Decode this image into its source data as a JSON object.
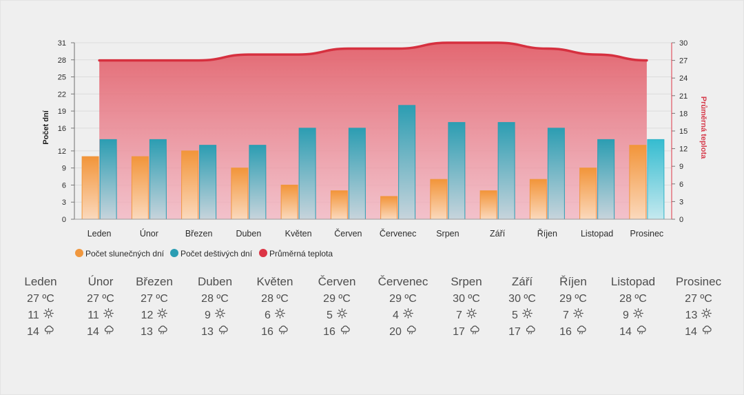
{
  "chart_data": {
    "type": "bar+area",
    "categories": [
      "Leden",
      "Únor",
      "Březen",
      "Duben",
      "Květen",
      "Červen",
      "Červenec",
      "Srpen",
      "Září",
      "Říjen",
      "Listopad",
      "Prosinec"
    ],
    "series": [
      {
        "name": "Počet slunečných dní",
        "type": "bar",
        "axis": "left",
        "color": "#f0973e",
        "values": [
          11,
          11,
          12,
          9,
          6,
          5,
          4,
          7,
          5,
          7,
          9,
          13
        ]
      },
      {
        "name": "Počet deštivých dní",
        "type": "bar",
        "axis": "left",
        "color": "#2a9db3",
        "values": [
          14,
          14,
          13,
          13,
          16,
          16,
          20,
          17,
          17,
          16,
          14,
          14
        ]
      },
      {
        "name": "Průměrná teplota",
        "type": "area",
        "axis": "right",
        "color": "#dc3545",
        "values": [
          27,
          27,
          27,
          28,
          28,
          29,
          29,
          30,
          30,
          29,
          28,
          27
        ]
      }
    ],
    "y_left": {
      "label": "Počet dní",
      "ticks": [
        0,
        3,
        6,
        9,
        12,
        16,
        19,
        22,
        25,
        28,
        31
      ],
      "range": [
        0,
        31
      ]
    },
    "y_right": {
      "label": "Průměrná teplota",
      "ticks": [
        0,
        3,
        6,
        9,
        12,
        15,
        18,
        21,
        24,
        27,
        30
      ],
      "range": [
        0,
        30
      ]
    },
    "legend_position": "bottom-left",
    "grid": true
  },
  "table": {
    "unit": "ºC",
    "rows": [
      {
        "month": "Leden",
        "temp": "27 ºC",
        "sun": "11",
        "rain": "14"
      },
      {
        "month": "Únor",
        "temp": "27 ºC",
        "sun": "11",
        "rain": "14"
      },
      {
        "month": "Březen",
        "temp": "27 ºC",
        "sun": "12",
        "rain": "13"
      },
      {
        "month": "Duben",
        "temp": "28 ºC",
        "sun": "9",
        "rain": "13"
      },
      {
        "month": "Květen",
        "temp": "28 ºC",
        "sun": "6",
        "rain": "16"
      },
      {
        "month": "Červen",
        "temp": "29 ºC",
        "sun": "5",
        "rain": "16"
      },
      {
        "month": "Červenec",
        "temp": "29 ºC",
        "sun": "4",
        "rain": "20"
      },
      {
        "month": "Srpen",
        "temp": "30 ºC",
        "sun": "7",
        "rain": "17"
      },
      {
        "month": "Září",
        "temp": "30 ºC",
        "sun": "5",
        "rain": "17"
      },
      {
        "month": "Říjen",
        "temp": "29 ºC",
        "sun": "7",
        "rain": "16"
      },
      {
        "month": "Listopad",
        "temp": "28 ºC",
        "sun": "9",
        "rain": "14"
      },
      {
        "month": "Prosinec",
        "temp": "27 ºC",
        "sun": "13",
        "rain": "14"
      }
    ],
    "icons": {
      "sun": "sun-icon",
      "rain": "cloud-rain-icon"
    }
  }
}
